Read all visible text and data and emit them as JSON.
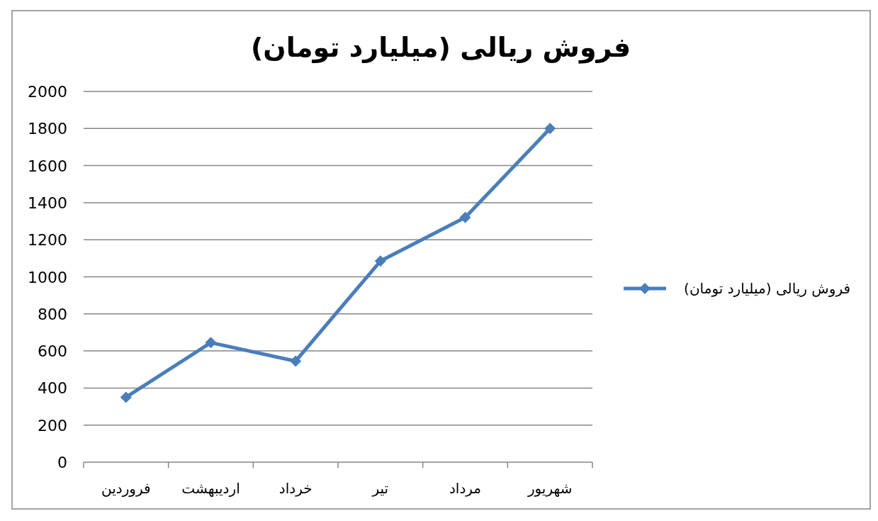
{
  "chart_data": {
    "type": "line",
    "title": "فروش ریالی (میلیارد تومان)",
    "categories": [
      "فروردین",
      "اردیبهشت",
      "خرداد",
      "تیر",
      "مرداد",
      "شهریور"
    ],
    "series": [
      {
        "name": "فروش ریالی (میلیارد تومان)",
        "color": "#4a7ebb",
        "values": [
          350,
          645,
          545,
          1085,
          1320,
          1800
        ]
      }
    ],
    "ylim": [
      0,
      2000
    ],
    "yticks": [
      0,
      200,
      400,
      600,
      800,
      1000,
      1200,
      1400,
      1600,
      1800,
      2000
    ],
    "grid": "y",
    "legend": "right",
    "marker": "diamond",
    "line_style": "solid"
  }
}
